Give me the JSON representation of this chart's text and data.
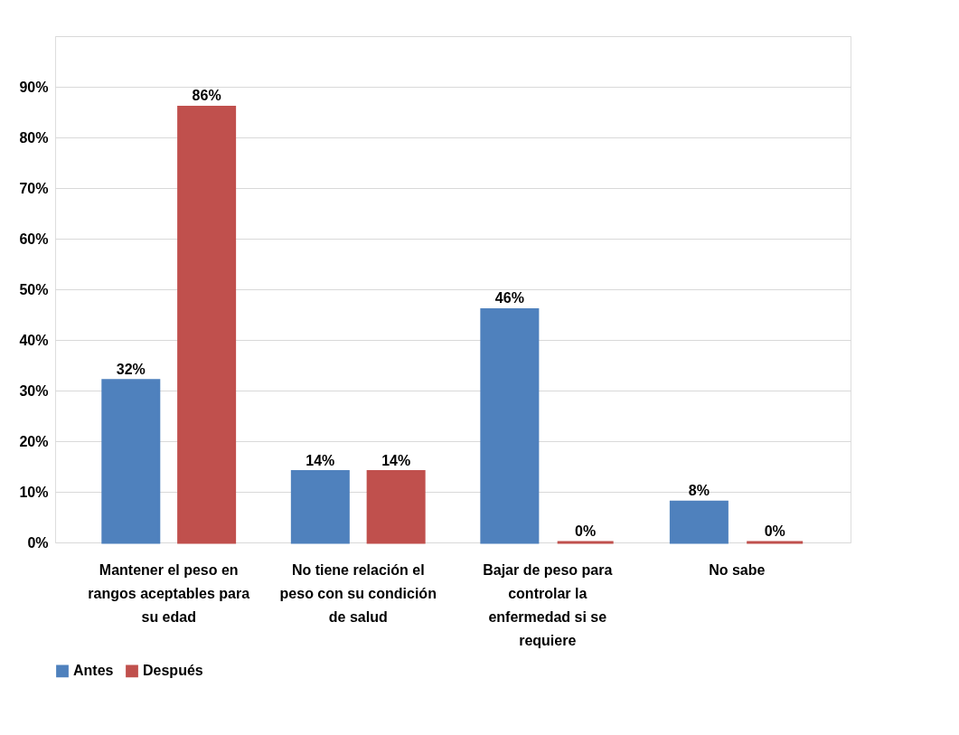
{
  "chart_data": {
    "type": "bar",
    "categories": [
      "Mantener el peso en rangos aceptables para su edad",
      "No tiene relación el peso con su condición de salud",
      "Bajar de peso para controlar la enfermedad si se requiere",
      "No sabe"
    ],
    "series": [
      {
        "name": "Antes",
        "color": "#4f81bd",
        "values": [
          32,
          14,
          46,
          8
        ],
        "value_labels": [
          "32%",
          "14%",
          "46%",
          "8%"
        ]
      },
      {
        "name": "Después",
        "color": "#c0504d",
        "values": [
          86,
          14,
          0,
          0
        ],
        "value_labels": [
          "86%",
          "14%",
          "0%",
          "0%"
        ]
      }
    ],
    "ylim": [
      0,
      100
    ],
    "yticks": [
      {
        "value": 0,
        "label": "0%"
      },
      {
        "value": 10,
        "label": "10%"
      },
      {
        "value": 20,
        "label": "20%"
      },
      {
        "value": 30,
        "label": "30%"
      },
      {
        "value": 40,
        "label": "40%"
      },
      {
        "value": 50,
        "label": "50%"
      },
      {
        "value": 60,
        "label": "60%"
      },
      {
        "value": 70,
        "label": "70%"
      },
      {
        "value": 80,
        "label": "80%"
      },
      {
        "value": 90,
        "label": "90%"
      },
      {
        "value": 100,
        "label": null
      }
    ],
    "grid": "y",
    "legend": "bottom"
  }
}
